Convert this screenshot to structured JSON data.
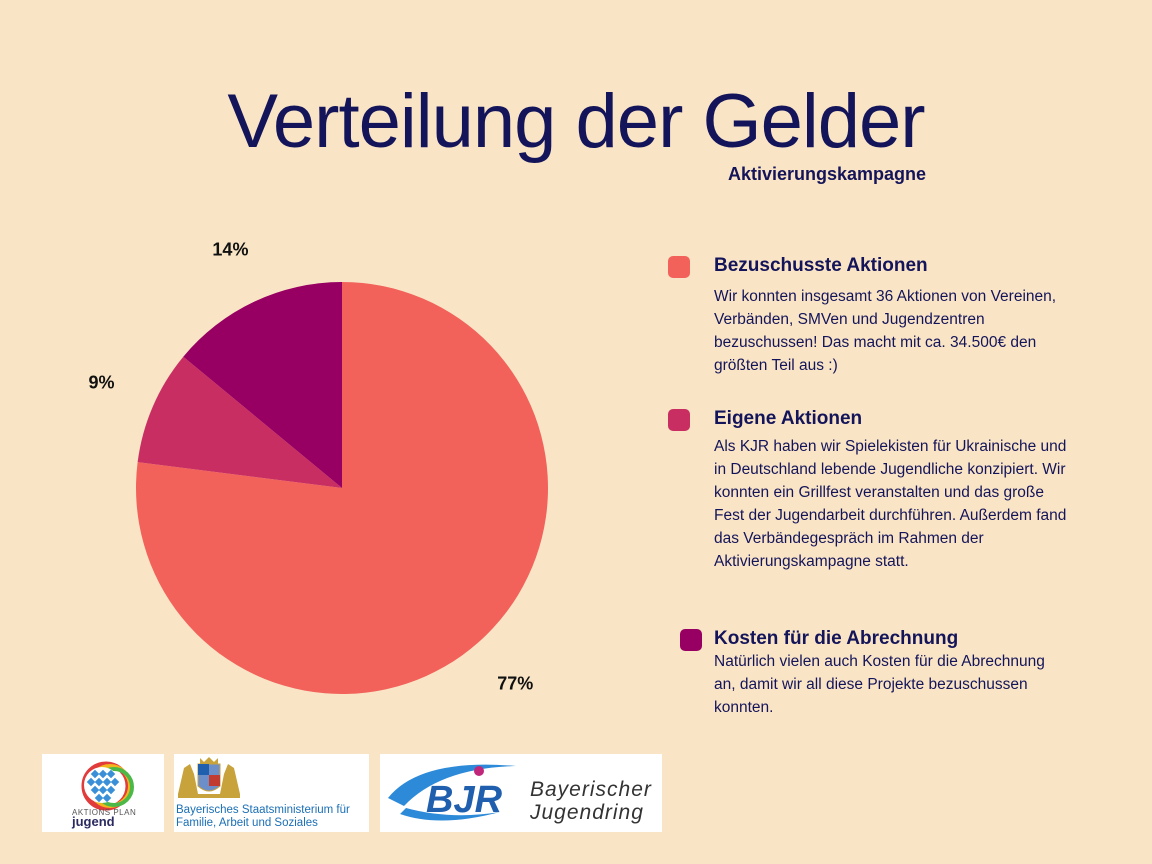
{
  "header": {
    "title": "Verteilung der Gelder",
    "subtitle": "Aktivierungskampagne"
  },
  "chart_data": {
    "type": "pie",
    "title": "Verteilung der Gelder",
    "subtitle": "Aktivierungskampagne",
    "slices": [
      {
        "name": "Bezuschusste Aktionen",
        "value": 77,
        "label": "77%",
        "color": "#f2625b"
      },
      {
        "name": "Eigene Aktionen",
        "value": 9,
        "label": "9%",
        "color": "#c92e63"
      },
      {
        "name": "Kosten für die Abrechnung",
        "value": 14,
        "label": "14%",
        "color": "#970062"
      }
    ],
    "start": "12 o'clock",
    "direction": "clockwise",
    "legend_position": "right"
  },
  "legend": [
    {
      "title": "Bezuschusste Aktionen",
      "color": "#f2625b",
      "text": "Wir konnten insgesamt 36 Aktionen von Vereinen, Verbänden, SMVen und Jugendzentren bezuschussen! Das macht mit ca. 34.500€ den größten Teil aus :)"
    },
    {
      "title": "Eigene Aktionen",
      "color": "#c92e63",
      "text": "Als KJR haben wir Spielekisten für Ukrainische und in Deutschland lebende Jugendliche konzipiert. Wir konnten ein Grillfest veranstalten und das große Fest der Jugendarbeit durchführen. Außerdem fand das Verbändegespräch im Rahmen der Aktivierungskampagne statt."
    },
    {
      "title": "Kosten für die Abrechnung",
      "color": "#970062",
      "text": "Natürlich vielen auch Kosten für die Abrechnung an, damit wir all diese Projekte bezuschussen konnten."
    }
  ],
  "logos": {
    "aktionsplan": {
      "line1": "AKTIONS PLAN",
      "line2": "jugend"
    },
    "ministry": {
      "line1": "Bayerisches Staatsministerium für",
      "line2": "Familie, Arbeit und Soziales"
    },
    "bjr": {
      "mark": "BJR",
      "line1": "Bayerischer",
      "line2": "Jugendring"
    }
  }
}
